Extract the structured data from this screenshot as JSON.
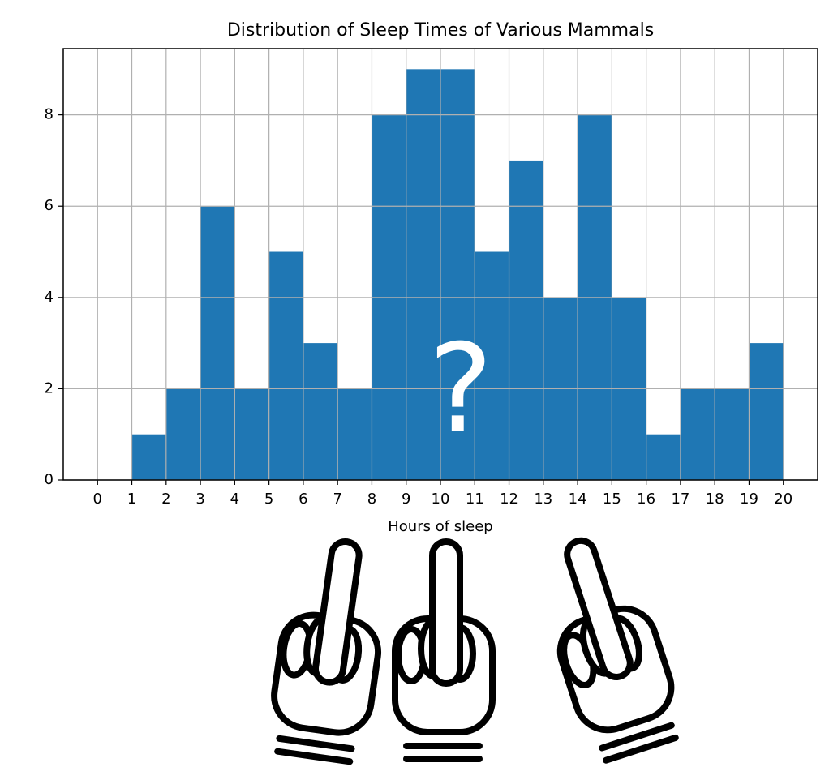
{
  "chart_data": {
    "type": "histogram",
    "title": "Distribution of Sleep Times of Various Mammals",
    "xlabel": "Hours of sleep",
    "annotation": "?",
    "bins": [
      1,
      2,
      3,
      4,
      5,
      6,
      7,
      8,
      9,
      10,
      11,
      12,
      13,
      14,
      15,
      16,
      17,
      18,
      19,
      20
    ],
    "values": [
      1,
      2,
      6,
      2,
      5,
      3,
      2,
      8,
      9,
      9,
      5,
      7,
      4,
      8,
      4,
      1,
      2,
      2,
      3
    ],
    "color": "#1f77b4",
    "xlim": [
      -1,
      21
    ],
    "xticks": [
      0,
      1,
      2,
      3,
      4,
      5,
      6,
      7,
      8,
      9,
      10,
      11,
      12,
      13,
      14,
      15,
      16,
      17,
      18,
      19,
      20
    ],
    "ylim": [
      0,
      9.45
    ],
    "yticks": [
      0,
      2,
      4,
      6,
      8
    ],
    "grid": true
  }
}
